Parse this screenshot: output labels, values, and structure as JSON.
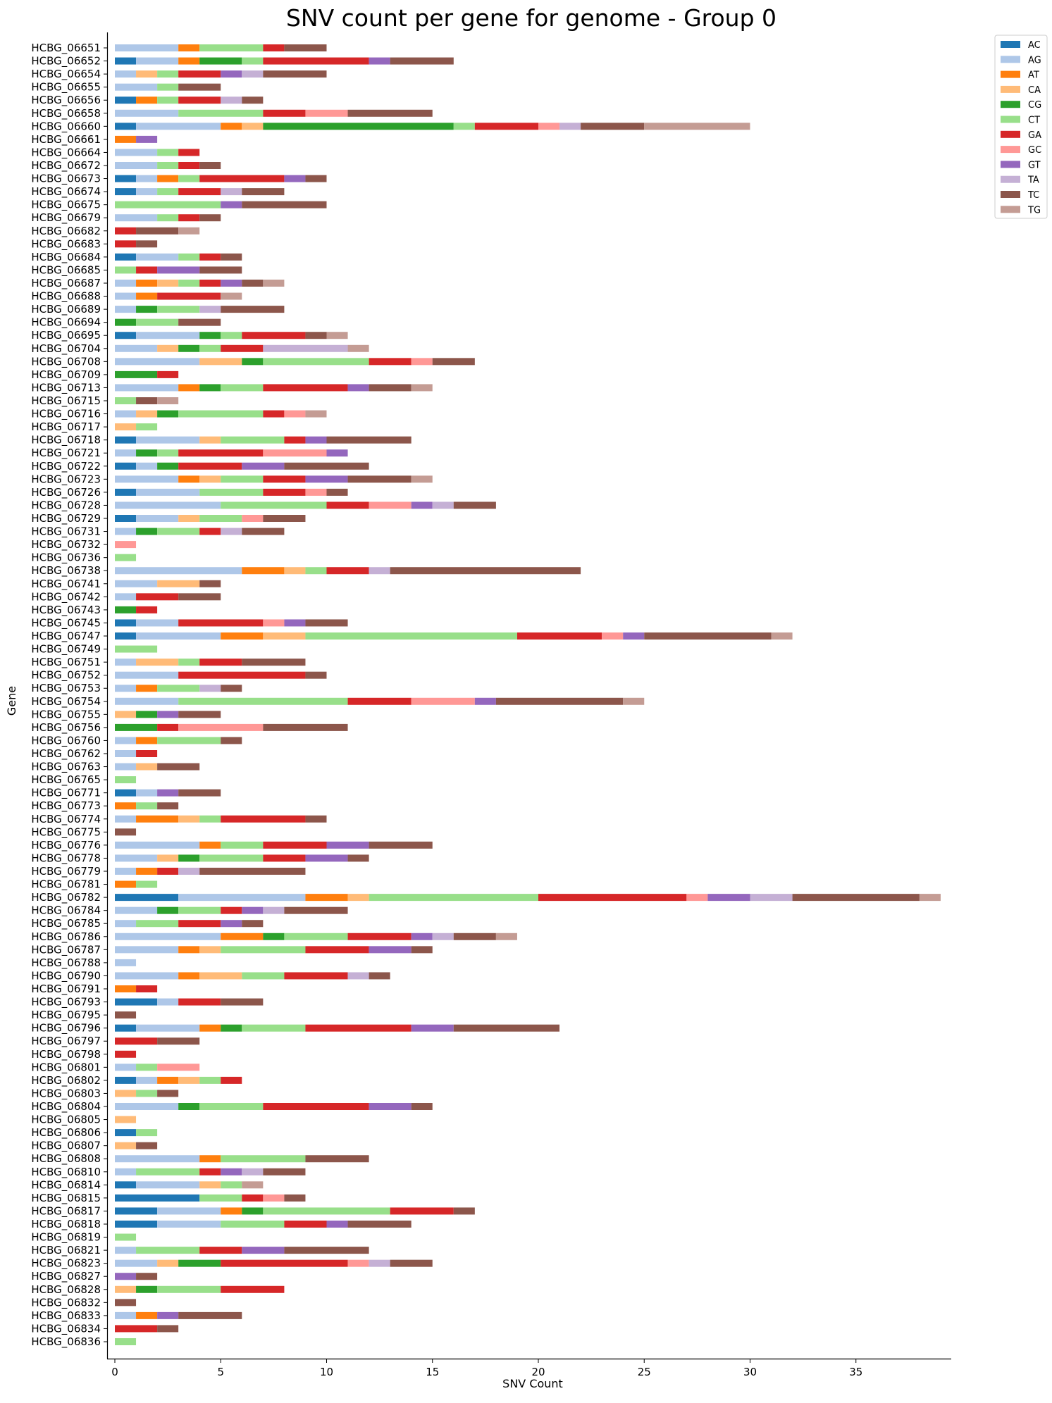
{
  "chart_data": {
    "type": "bar",
    "orientation": "horizontal",
    "stacked": true,
    "title": "SNV count per gene for genome - Group 0",
    "xlabel": "SNV Count",
    "ylabel": "Gene",
    "xlim": [
      0,
      39.4
    ],
    "xticks": [
      0,
      5,
      10,
      15,
      20,
      25,
      30,
      35
    ],
    "grid": false,
    "legend_position": "top-right",
    "series_order": [
      "AC",
      "AG",
      "AT",
      "CA",
      "CG",
      "CT",
      "GA",
      "GC",
      "GT",
      "TA",
      "TC",
      "TG"
    ],
    "colors": {
      "AC": "#1f77b4",
      "AG": "#aec7e8",
      "AT": "#ff7f0e",
      "CA": "#ffbb78",
      "CG": "#2ca02c",
      "CT": "#98df8a",
      "GA": "#d62728",
      "GC": "#ff9896",
      "GT": "#9467bd",
      "TA": "#c5b0d5",
      "TC": "#8c564b",
      "TG": "#c49c94"
    },
    "genes": [
      {
        "name": "HCBG_06651",
        "counts": {
          "AG": 3,
          "AT": 1,
          "CT": 3,
          "GA": 1,
          "TC": 2
        }
      },
      {
        "name": "HCBG_06652",
        "counts": {
          "AC": 1,
          "AG": 2,
          "AT": 1,
          "CG": 2,
          "CT": 1,
          "GA": 5,
          "GT": 1,
          "TC": 3
        }
      },
      {
        "name": "HCBG_06654",
        "counts": {
          "AG": 1,
          "CA": 1,
          "CT": 1,
          "GA": 2,
          "GT": 1,
          "TA": 1,
          "TC": 3
        }
      },
      {
        "name": "HCBG_06655",
        "counts": {
          "AG": 2,
          "CT": 1,
          "TC": 2
        }
      },
      {
        "name": "HCBG_06656",
        "counts": {
          "AC": 1,
          "AT": 1,
          "CT": 1,
          "GA": 2,
          "TA": 1,
          "TC": 1
        }
      },
      {
        "name": "HCBG_06658",
        "counts": {
          "AG": 3,
          "CT": 4,
          "GA": 2,
          "GC": 2,
          "TC": 4
        }
      },
      {
        "name": "HCBG_06660",
        "counts": {
          "AC": 1,
          "AG": 4,
          "AT": 1,
          "CA": 1,
          "CG": 9,
          "CT": 1,
          "GA": 3,
          "GC": 1,
          "TA": 1,
          "TC": 3,
          "TG": 5
        }
      },
      {
        "name": "HCBG_06661",
        "counts": {
          "AT": 1,
          "GT": 1
        }
      },
      {
        "name": "HCBG_06664",
        "counts": {
          "AG": 2,
          "CT": 1,
          "GA": 1
        }
      },
      {
        "name": "HCBG_06672",
        "counts": {
          "AG": 2,
          "CT": 1,
          "GA": 1,
          "TC": 1
        }
      },
      {
        "name": "HCBG_06673",
        "counts": {
          "AC": 1,
          "AG": 1,
          "AT": 1,
          "CT": 1,
          "GA": 4,
          "GT": 1,
          "TC": 1
        }
      },
      {
        "name": "HCBG_06674",
        "counts": {
          "AC": 1,
          "AG": 1,
          "CT": 1,
          "GA": 2,
          "TA": 1,
          "TC": 2
        }
      },
      {
        "name": "HCBG_06675",
        "counts": {
          "CT": 5,
          "GT": 1,
          "TC": 4
        }
      },
      {
        "name": "HCBG_06679",
        "counts": {
          "AG": 2,
          "CT": 1,
          "GA": 1,
          "TC": 1
        }
      },
      {
        "name": "HCBG_06682",
        "counts": {
          "GA": 1,
          "TC": 2,
          "TG": 1
        }
      },
      {
        "name": "HCBG_06683",
        "counts": {
          "GA": 1,
          "TC": 1
        }
      },
      {
        "name": "HCBG_06684",
        "counts": {
          "AC": 1,
          "AG": 2,
          "CT": 1,
          "GA": 1,
          "TC": 1
        }
      },
      {
        "name": "HCBG_06685",
        "counts": {
          "CT": 1,
          "GA": 1,
          "GT": 2,
          "TC": 2
        }
      },
      {
        "name": "HCBG_06687",
        "counts": {
          "AG": 1,
          "AT": 1,
          "CA": 1,
          "CT": 1,
          "GA": 1,
          "GT": 1,
          "TC": 1,
          "TG": 1
        }
      },
      {
        "name": "HCBG_06688",
        "counts": {
          "AG": 1,
          "AT": 1,
          "GA": 3,
          "TG": 1
        }
      },
      {
        "name": "HCBG_06689",
        "counts": {
          "AG": 1,
          "CG": 1,
          "CT": 2,
          "TA": 1,
          "TC": 3
        }
      },
      {
        "name": "HCBG_06694",
        "counts": {
          "CG": 1,
          "CT": 2,
          "TC": 2
        }
      },
      {
        "name": "HCBG_06695",
        "counts": {
          "AC": 1,
          "AG": 3,
          "CG": 1,
          "CT": 1,
          "GA": 3,
          "TC": 1,
          "TG": 1
        }
      },
      {
        "name": "HCBG_06704",
        "counts": {
          "AG": 2,
          "CA": 1,
          "CG": 1,
          "CT": 1,
          "GA": 2,
          "TA": 4,
          "TG": 1
        }
      },
      {
        "name": "HCBG_06708",
        "counts": {
          "AG": 4,
          "CA": 2,
          "CG": 1,
          "CT": 5,
          "GA": 2,
          "GC": 1,
          "TC": 2
        }
      },
      {
        "name": "HCBG_06709",
        "counts": {
          "CG": 2,
          "GA": 1
        }
      },
      {
        "name": "HCBG_06713",
        "counts": {
          "AG": 3,
          "AT": 1,
          "CG": 1,
          "CT": 2,
          "GA": 4,
          "GT": 1,
          "TC": 2,
          "TG": 1
        }
      },
      {
        "name": "HCBG_06715",
        "counts": {
          "CT": 1,
          "TC": 1,
          "TG": 1
        }
      },
      {
        "name": "HCBG_06716",
        "counts": {
          "AG": 1,
          "CA": 1,
          "CG": 1,
          "CT": 4,
          "GA": 1,
          "GC": 1,
          "TG": 1
        }
      },
      {
        "name": "HCBG_06717",
        "counts": {
          "CA": 1,
          "CT": 1
        }
      },
      {
        "name": "HCBG_06718",
        "counts": {
          "AC": 1,
          "AG": 3,
          "CA": 1,
          "CT": 3,
          "GA": 1,
          "GT": 1,
          "TC": 4
        }
      },
      {
        "name": "HCBG_06721",
        "counts": {
          "AG": 1,
          "CG": 1,
          "CT": 1,
          "GA": 4,
          "GC": 3,
          "GT": 1
        }
      },
      {
        "name": "HCBG_06722",
        "counts": {
          "AC": 1,
          "AG": 1,
          "CG": 1,
          "GA": 3,
          "GT": 2,
          "TC": 4
        }
      },
      {
        "name": "HCBG_06723",
        "counts": {
          "AG": 3,
          "AT": 1,
          "CA": 1,
          "CT": 2,
          "GA": 2,
          "GT": 2,
          "TC": 3,
          "TG": 1
        }
      },
      {
        "name": "HCBG_06726",
        "counts": {
          "AC": 1,
          "AG": 3,
          "CT": 3,
          "GA": 2,
          "GC": 1,
          "TC": 1
        }
      },
      {
        "name": "HCBG_06728",
        "counts": {
          "AG": 5,
          "CT": 5,
          "GA": 2,
          "GC": 2,
          "GT": 1,
          "TA": 1,
          "TC": 2
        }
      },
      {
        "name": "HCBG_06729",
        "counts": {
          "AC": 1,
          "AG": 2,
          "CA": 1,
          "CT": 2,
          "GC": 1,
          "TC": 2
        }
      },
      {
        "name": "HCBG_06731",
        "counts": {
          "AG": 1,
          "CG": 1,
          "CT": 2,
          "GA": 1,
          "TA": 1,
          "TC": 2
        }
      },
      {
        "name": "HCBG_06732",
        "counts": {
          "GC": 1
        }
      },
      {
        "name": "HCBG_06736",
        "counts": {
          "CT": 1
        }
      },
      {
        "name": "HCBG_06738",
        "counts": {
          "AG": 6,
          "AT": 2,
          "CA": 1,
          "CT": 1,
          "GA": 2,
          "TA": 1,
          "TC": 9
        }
      },
      {
        "name": "HCBG_06741",
        "counts": {
          "AG": 2,
          "CA": 2,
          "TC": 1
        }
      },
      {
        "name": "HCBG_06742",
        "counts": {
          "AG": 1,
          "GA": 2,
          "TC": 2
        }
      },
      {
        "name": "HCBG_06743",
        "counts": {
          "CG": 1,
          "GA": 1
        }
      },
      {
        "name": "HCBG_06745",
        "counts": {
          "AC": 1,
          "AG": 2,
          "GA": 4,
          "GC": 1,
          "GT": 1,
          "TC": 2
        }
      },
      {
        "name": "HCBG_06747",
        "counts": {
          "AC": 1,
          "AG": 4,
          "AT": 2,
          "CA": 2,
          "CT": 10,
          "GA": 4,
          "GC": 1,
          "GT": 1,
          "TC": 6,
          "TG": 1
        }
      },
      {
        "name": "HCBG_06749",
        "counts": {
          "CT": 2
        }
      },
      {
        "name": "HCBG_06751",
        "counts": {
          "AG": 1,
          "CA": 2,
          "CT": 1,
          "GA": 2,
          "TC": 3
        }
      },
      {
        "name": "HCBG_06752",
        "counts": {
          "AG": 3,
          "GA": 6,
          "TC": 1
        }
      },
      {
        "name": "HCBG_06753",
        "counts": {
          "AG": 1,
          "AT": 1,
          "CT": 2,
          "TA": 1,
          "TC": 1
        }
      },
      {
        "name": "HCBG_06754",
        "counts": {
          "AG": 3,
          "CT": 8,
          "GA": 3,
          "GC": 3,
          "GT": 1,
          "TC": 6,
          "TG": 1
        }
      },
      {
        "name": "HCBG_06755",
        "counts": {
          "CA": 1,
          "CG": 1,
          "GT": 1,
          "TC": 2
        }
      },
      {
        "name": "HCBG_06756",
        "counts": {
          "CG": 2,
          "GA": 1,
          "GC": 4,
          "TC": 4
        }
      },
      {
        "name": "HCBG_06760",
        "counts": {
          "AG": 1,
          "AT": 1,
          "CT": 3,
          "TC": 1
        }
      },
      {
        "name": "HCBG_06762",
        "counts": {
          "AG": 1,
          "GA": 1
        }
      },
      {
        "name": "HCBG_06763",
        "counts": {
          "AG": 1,
          "CA": 1,
          "TC": 2
        }
      },
      {
        "name": "HCBG_06765",
        "counts": {
          "CT": 1
        }
      },
      {
        "name": "HCBG_06771",
        "counts": {
          "AC": 1,
          "AG": 1,
          "GT": 1,
          "TC": 2
        }
      },
      {
        "name": "HCBG_06773",
        "counts": {
          "AT": 1,
          "CT": 1,
          "TC": 1
        }
      },
      {
        "name": "HCBG_06774",
        "counts": {
          "AG": 1,
          "AT": 2,
          "CA": 1,
          "CT": 1,
          "GA": 4,
          "TC": 1
        }
      },
      {
        "name": "HCBG_06775",
        "counts": {
          "TC": 1
        }
      },
      {
        "name": "HCBG_06776",
        "counts": {
          "AG": 4,
          "AT": 1,
          "CT": 2,
          "GA": 3,
          "GT": 2,
          "TC": 3
        }
      },
      {
        "name": "HCBG_06778",
        "counts": {
          "AG": 2,
          "CA": 1,
          "CG": 1,
          "CT": 3,
          "GA": 2,
          "GT": 2,
          "TC": 1
        }
      },
      {
        "name": "HCBG_06779",
        "counts": {
          "AG": 1,
          "AT": 1,
          "GA": 1,
          "TA": 1,
          "TC": 5
        }
      },
      {
        "name": "HCBG_06781",
        "counts": {
          "AT": 1,
          "CT": 1
        }
      },
      {
        "name": "HCBG_06782",
        "counts": {
          "AC": 3,
          "AG": 6,
          "AT": 2,
          "CA": 1,
          "CT": 8,
          "GA": 7,
          "GC": 1,
          "GT": 2,
          "TA": 2,
          "TC": 6,
          "TG": 1
        }
      },
      {
        "name": "HCBG_06784",
        "counts": {
          "AG": 2,
          "CG": 1,
          "CT": 2,
          "GA": 1,
          "GT": 1,
          "TA": 1,
          "TC": 3
        }
      },
      {
        "name": "HCBG_06785",
        "counts": {
          "AG": 1,
          "CT": 2,
          "GA": 2,
          "GT": 1,
          "TC": 1
        }
      },
      {
        "name": "HCBG_06786",
        "counts": {
          "AG": 5,
          "AT": 2,
          "CG": 1,
          "CT": 3,
          "GA": 3,
          "GT": 1,
          "TA": 1,
          "TC": 2,
          "TG": 1
        }
      },
      {
        "name": "HCBG_06787",
        "counts": {
          "AG": 3,
          "AT": 1,
          "CA": 1,
          "CT": 4,
          "GA": 3,
          "GT": 2,
          "TC": 1
        }
      },
      {
        "name": "HCBG_06788",
        "counts": {
          "AG": 1
        }
      },
      {
        "name": "HCBG_06790",
        "counts": {
          "AG": 3,
          "AT": 1,
          "CA": 2,
          "CT": 2,
          "GA": 3,
          "TA": 1,
          "TC": 1
        }
      },
      {
        "name": "HCBG_06791",
        "counts": {
          "AT": 1,
          "GA": 1
        }
      },
      {
        "name": "HCBG_06793",
        "counts": {
          "AC": 2,
          "AG": 1,
          "GA": 2,
          "TC": 2
        }
      },
      {
        "name": "HCBG_06795",
        "counts": {
          "TC": 1
        }
      },
      {
        "name": "HCBG_06796",
        "counts": {
          "AC": 1,
          "AG": 3,
          "AT": 1,
          "CG": 1,
          "CT": 3,
          "GA": 5,
          "GT": 2,
          "TC": 5
        }
      },
      {
        "name": "HCBG_06797",
        "counts": {
          "GA": 2,
          "TC": 2
        }
      },
      {
        "name": "HCBG_06798",
        "counts": {
          "GA": 1
        }
      },
      {
        "name": "HCBG_06801",
        "counts": {
          "AG": 1,
          "CT": 1,
          "GC": 2
        }
      },
      {
        "name": "HCBG_06802",
        "counts": {
          "AC": 1,
          "AG": 1,
          "AT": 1,
          "CA": 1,
          "CT": 1,
          "GA": 1
        }
      },
      {
        "name": "HCBG_06803",
        "counts": {
          "CA": 1,
          "CT": 1,
          "TC": 1
        }
      },
      {
        "name": "HCBG_06804",
        "counts": {
          "AG": 3,
          "CG": 1,
          "CT": 3,
          "GA": 5,
          "GT": 2,
          "TC": 1
        }
      },
      {
        "name": "HCBG_06805",
        "counts": {
          "CA": 1
        }
      },
      {
        "name": "HCBG_06806",
        "counts": {
          "AC": 1,
          "CT": 1
        }
      },
      {
        "name": "HCBG_06807",
        "counts": {
          "CA": 1,
          "TC": 1
        }
      },
      {
        "name": "HCBG_06808",
        "counts": {
          "AG": 4,
          "AT": 1,
          "CT": 4,
          "TC": 3
        }
      },
      {
        "name": "HCBG_06810",
        "counts": {
          "AG": 1,
          "CT": 3,
          "GA": 1,
          "GT": 1,
          "TA": 1,
          "TC": 2
        }
      },
      {
        "name": "HCBG_06814",
        "counts": {
          "AC": 1,
          "AG": 3,
          "CA": 1,
          "CT": 1,
          "TG": 1
        }
      },
      {
        "name": "HCBG_06815",
        "counts": {
          "AC": 4,
          "CT": 2,
          "GA": 1,
          "GC": 1,
          "TC": 1
        }
      },
      {
        "name": "HCBG_06817",
        "counts": {
          "AC": 2,
          "AG": 3,
          "AT": 1,
          "CG": 1,
          "CT": 6,
          "GA": 3,
          "TC": 1
        }
      },
      {
        "name": "HCBG_06818",
        "counts": {
          "AC": 2,
          "AG": 3,
          "CT": 3,
          "GA": 2,
          "GT": 1,
          "TC": 3
        }
      },
      {
        "name": "HCBG_06819",
        "counts": {
          "CT": 1
        }
      },
      {
        "name": "HCBG_06821",
        "counts": {
          "AG": 1,
          "CT": 3,
          "GA": 2,
          "GT": 2,
          "TC": 4
        }
      },
      {
        "name": "HCBG_06823",
        "counts": {
          "AG": 2,
          "CA": 1,
          "CG": 2,
          "GA": 6,
          "GC": 1,
          "TA": 1,
          "TC": 2
        }
      },
      {
        "name": "HCBG_06827",
        "counts": {
          "GT": 1,
          "TC": 1
        }
      },
      {
        "name": "HCBG_06828",
        "counts": {
          "CA": 1,
          "CG": 1,
          "CT": 3,
          "GA": 3
        }
      },
      {
        "name": "HCBG_06832",
        "counts": {
          "TC": 1
        }
      },
      {
        "name": "HCBG_06833",
        "counts": {
          "AG": 1,
          "AT": 1,
          "GT": 1,
          "TC": 3
        }
      },
      {
        "name": "HCBG_06834",
        "counts": {
          "GA": 2,
          "TC": 1
        }
      },
      {
        "name": "HCBG_06836",
        "counts": {
          "CT": 1
        }
      }
    ]
  }
}
